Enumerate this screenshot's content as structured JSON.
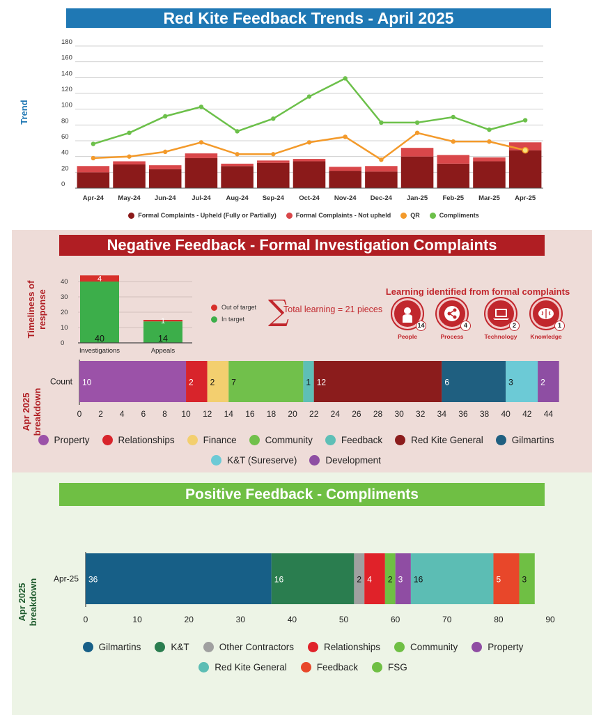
{
  "header": {
    "title": "Red Kite Feedback Trends - April 2025"
  },
  "trend": {
    "ylabel": "Trend"
  },
  "negative": {
    "banner": "Negative Feedback - Formal Investigation Complaints",
    "timeliness_label_1": "Timeliness of",
    "timeliness_label_2": "response",
    "breakdown_label_1": "Apr 2025",
    "breakdown_label_2": "breakdown",
    "learning": {
      "title": "Learning identified from formal complaints",
      "total": "Total learning = 21 pieces",
      "items": [
        {
          "label": "People",
          "count": "14",
          "icon": "person-icon"
        },
        {
          "label": "Process",
          "count": "4",
          "icon": "share-icon"
        },
        {
          "label": "Technology",
          "count": "2",
          "icon": "laptop-icon"
        },
        {
          "label": "Knowledge",
          "count": "1",
          "icon": "brain-icon"
        }
      ]
    }
  },
  "positive": {
    "banner": "Positive Feedback - Compliments",
    "breakdown_label_1": "Apr 2025",
    "breakdown_label_2": "breakdown"
  },
  "chart_data": [
    {
      "type": "bar+line",
      "title": "Red Kite Feedback Trends - April 2025",
      "ylabel": "Trend",
      "ylim": [
        0,
        180
      ],
      "yticks": [
        0,
        20,
        40,
        60,
        80,
        100,
        120,
        140,
        160,
        180
      ],
      "categories": [
        "Apr-24",
        "May-24",
        "Jun-24",
        "Jul-24",
        "Aug-24",
        "Sep-24",
        "Oct-24",
        "Nov-24",
        "Dec-24",
        "Jan-25",
        "Feb-25",
        "Mar-25",
        "Apr-25"
      ],
      "series": [
        {
          "name": "Formal Complaints - Upheld (Fully or Partially)",
          "kind": "stacked-bar",
          "color": "#8b1a1a",
          "values": [
            20,
            30,
            24,
            38,
            28,
            32,
            34,
            22,
            21,
            40,
            31,
            34,
            48
          ]
        },
        {
          "name": "Formal Complaints - Not upheld",
          "kind": "stacked-bar",
          "color": "#d9474a",
          "values": [
            8,
            4,
            5,
            6,
            3,
            3,
            3,
            5,
            7,
            11,
            11,
            5,
            10
          ]
        },
        {
          "name": "QR",
          "kind": "line",
          "color": "#f39a2b",
          "values": [
            38,
            40,
            46,
            58,
            43,
            43,
            58,
            65,
            36,
            70,
            59,
            59,
            48
          ]
        },
        {
          "name": "Compliments",
          "kind": "line",
          "color": "#6cc04a",
          "values": [
            56,
            70,
            91,
            103,
            72,
            88,
            116,
            139,
            83,
            83,
            90,
            74,
            86
          ]
        }
      ],
      "legend": "bottom"
    },
    {
      "type": "bar",
      "stacked": true,
      "categories": [
        "Investigations",
        "Appeals"
      ],
      "ylim": [
        0,
        45
      ],
      "yticks": [
        0,
        10,
        20,
        30,
        40
      ],
      "series": [
        {
          "name": "In target",
          "color": "#3cae4a",
          "values": [
            40,
            14
          ]
        },
        {
          "name": "Out of target",
          "color": "#d7302b",
          "values": [
            4,
            1
          ]
        }
      ],
      "legend": "right"
    },
    {
      "type": "bar",
      "orientation": "horizontal",
      "stacked": true,
      "categories": [
        "Count"
      ],
      "xlim": [
        0,
        46
      ],
      "xticks": [
        0,
        2,
        4,
        6,
        8,
        10,
        12,
        14,
        16,
        18,
        20,
        22,
        24,
        26,
        28,
        30,
        32,
        34,
        36,
        38,
        40,
        42,
        44
      ],
      "series": [
        {
          "name": "Property",
          "color": "#9b52a8",
          "values": [
            10
          ]
        },
        {
          "name": "Relationships",
          "color": "#d8242b",
          "values": [
            2
          ]
        },
        {
          "name": "Finance",
          "color": "#f3cf6f",
          "values": [
            2
          ]
        },
        {
          "name": "Community",
          "color": "#71c04b",
          "values": [
            7
          ]
        },
        {
          "name": "Feedback",
          "color": "#5ebfb6",
          "values": [
            1
          ]
        },
        {
          "name": "Red Kite General",
          "color": "#8b1c1c",
          "values": [
            12
          ]
        },
        {
          "name": "Gilmartins",
          "color": "#1f5f80",
          "values": [
            6
          ]
        },
        {
          "name": "K&T (Sureserve)",
          "color": "#6ccad6",
          "values": [
            3
          ]
        },
        {
          "name": "Development",
          "color": "#8e4ea3",
          "values": [
            2
          ]
        }
      ],
      "legend": "bottom"
    },
    {
      "type": "bar",
      "orientation": "horizontal",
      "stacked": true,
      "categories": [
        "Apr-25"
      ],
      "xlim": [
        0,
        90
      ],
      "xticks": [
        0,
        10,
        20,
        30,
        40,
        50,
        60,
        70,
        80,
        90
      ],
      "series": [
        {
          "name": "Gilmartins",
          "color": "#175f87",
          "values": [
            36
          ]
        },
        {
          "name": "K&T",
          "color": "#2a7d4f",
          "values": [
            16
          ]
        },
        {
          "name": "Other Contractors",
          "color": "#a0a0a0",
          "values": [
            2
          ]
        },
        {
          "name": "Relationships",
          "color": "#e02229",
          "values": [
            4
          ]
        },
        {
          "name": "Community",
          "color": "#6fbf44",
          "values": [
            2
          ]
        },
        {
          "name": "Property",
          "color": "#8f4da3",
          "values": [
            3
          ]
        },
        {
          "name": "Red Kite General",
          "color": "#5cbdb4",
          "values": [
            16
          ]
        },
        {
          "name": "Feedback",
          "color": "#e8472a",
          "values": [
            5
          ]
        },
        {
          "name": "FSG",
          "color": "#6fbf44",
          "values": [
            3
          ]
        }
      ],
      "legend": "bottom"
    }
  ]
}
